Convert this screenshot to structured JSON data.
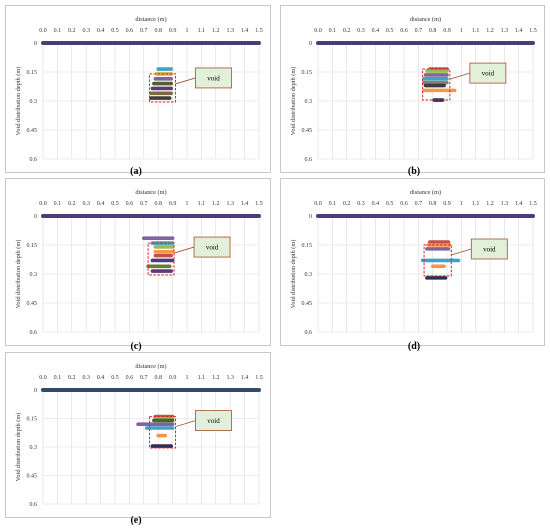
{
  "chart_data": [
    {
      "type": "line",
      "caption": "(a)",
      "xlabel": "distance (m)",
      "ylabel": "Void distribution depth (m)",
      "xlim": [
        0,
        1.5
      ],
      "ylim": [
        0,
        0.6
      ],
      "x_ticks": [
        "0.0",
        "0.1",
        "0.2",
        "0.3",
        "0.4",
        "0.5",
        "0.6",
        "0.7",
        "0.8",
        "0.9",
        "1",
        "1.1",
        "1.2",
        "1.3",
        "1.4",
        "1.5"
      ],
      "y_ticks": [
        "0",
        "0.15",
        "0.3",
        "0.45",
        "0.6"
      ],
      "annotation": "void",
      "surface": {
        "y": 0,
        "x": [
          0,
          1.5
        ],
        "color": "#4b3d7a"
      },
      "series": [
        {
          "color": "#3da2c3",
          "x": [
            0.8,
            0.89
          ],
          "y": 0.135
        },
        {
          "color": "#d0b24a",
          "x": [
            0.79,
            0.89
          ],
          "y": 0.16
        },
        {
          "color": "#8064a2",
          "x": [
            0.78,
            0.89
          ],
          "y": 0.185
        },
        {
          "color": "#4f6228",
          "x": [
            0.77,
            0.89
          ],
          "y": 0.21
        },
        {
          "color": "#5a3a7a",
          "x": [
            0.76,
            0.89
          ],
          "y": 0.235
        },
        {
          "color": "#7a6a3a",
          "x": [
            0.75,
            0.89
          ],
          "y": 0.26
        },
        {
          "color": "#3d3d3d",
          "x": [
            0.75,
            0.88
          ],
          "y": 0.285
        }
      ],
      "void_box": {
        "x": [
          0.74,
          0.92
        ],
        "y": [
          0.16,
          0.305
        ]
      }
    },
    {
      "type": "line",
      "caption": "(b)",
      "xlabel": "distance (m)",
      "ylabel": "Void distribution depth (m)",
      "xlim": [
        0,
        1.5
      ],
      "ylim": [
        0,
        0.6
      ],
      "x_ticks": [
        "0.0",
        "0.1",
        "0.2",
        "0.3",
        "0.4",
        "0.5",
        "0.6",
        "0.7",
        "0.8",
        "0.9",
        "1",
        "1.1",
        "1.2",
        "1.3",
        "1.4",
        "1.5"
      ],
      "y_ticks": [
        "0",
        "0.15",
        "0.3",
        "0.45",
        "0.6"
      ],
      "annotation": "void",
      "surface": {
        "y": 0,
        "x": [
          0,
          1.5
        ],
        "color": "#4b3d7a"
      },
      "series": [
        {
          "color": "#c0504d",
          "x": [
            0.78,
            0.9
          ],
          "y": 0.135
        },
        {
          "color": "#9bbb59",
          "x": [
            0.76,
            0.9
          ],
          "y": 0.145
        },
        {
          "color": "#8064a2",
          "x": [
            0.75,
            0.9
          ],
          "y": 0.165
        },
        {
          "color": "#3da2c3",
          "x": [
            0.74,
            0.9
          ],
          "y": 0.185
        },
        {
          "color": "#7f7f7f",
          "x": [
            0.74,
            0.9
          ],
          "y": 0.205
        },
        {
          "color": "#3d3d3d",
          "x": [
            0.75,
            0.88
          ],
          "y": 0.22
        },
        {
          "color": "#f79646",
          "x": [
            0.74,
            0.96
          ],
          "y": 0.245
        },
        {
          "color": "#2d2d55",
          "x": [
            0.81,
            0.87
          ],
          "y": 0.295
        }
      ],
      "void_box": {
        "x": [
          0.73,
          0.92
        ],
        "y": [
          0.135,
          0.295
        ]
      }
    },
    {
      "type": "line",
      "caption": "(c)",
      "xlabel": "distance (m)",
      "ylabel": "Void distribution depth (m)",
      "xlim": [
        0,
        1.5
      ],
      "ylim": [
        0,
        0.6
      ],
      "x_ticks": [
        "0.0",
        "0.1",
        "0.2",
        "0.3",
        "0.4",
        "0.5",
        "0.6",
        "0.7",
        "0.8",
        "0.9",
        "1",
        "1.1",
        "1.2",
        "1.3",
        "1.4",
        "1.5"
      ],
      "y_ticks": [
        "0",
        "0.15",
        "0.3",
        "0.45",
        "0.6"
      ],
      "annotation": "void",
      "surface": {
        "y": 0,
        "x": [
          0,
          1.5
        ],
        "color": "#4b3d7a"
      },
      "series": [
        {
          "color": "#8064a2",
          "x": [
            0.7,
            0.9
          ],
          "y": 0.115
        },
        {
          "color": "#3da2c3",
          "x": [
            0.76,
            0.9
          ],
          "y": 0.14
        },
        {
          "color": "#9bbb59",
          "x": [
            0.78,
            0.9
          ],
          "y": 0.16
        },
        {
          "color": "#f79646",
          "x": [
            0.78,
            0.9
          ],
          "y": 0.185
        },
        {
          "color": "#c0504d",
          "x": [
            0.78,
            0.89
          ],
          "y": 0.205
        },
        {
          "color": "#4b3d7a",
          "x": [
            0.76,
            0.9
          ],
          "y": 0.23
        },
        {
          "color": "#6a7a3a",
          "x": [
            0.73,
            0.88
          ],
          "y": 0.26
        },
        {
          "color": "#5a3a7a",
          "x": [
            0.76,
            0.89
          ],
          "y": 0.285
        }
      ],
      "void_box": {
        "x": [
          0.73,
          0.91
        ],
        "y": [
          0.14,
          0.305
        ]
      }
    },
    {
      "type": "line",
      "caption": "(d)",
      "xlabel": "distance (m)",
      "ylabel": "Void distribution depth (m)",
      "xlim": [
        0,
        1.5
      ],
      "ylim": [
        0,
        0.6
      ],
      "x_ticks": [
        "0.0",
        "0.1",
        "0.2",
        "0.3",
        "0.4",
        "0.5",
        "0.6",
        "0.7",
        "0.8",
        "0.9",
        "1",
        "1.1",
        "1.2",
        "1.3",
        "1.4",
        "1.5"
      ],
      "y_ticks": [
        "0",
        "0.15",
        "0.3",
        "0.45",
        "0.6"
      ],
      "annotation": "void",
      "surface": {
        "y": 0,
        "x": [
          0,
          1.5
        ],
        "color": "#4b3d7a"
      },
      "series": [
        {
          "color": "#c0504d",
          "x": [
            0.78,
            0.91
          ],
          "y": 0.135
        },
        {
          "color": "#f79646",
          "x": [
            0.77,
            0.92
          ],
          "y": 0.15
        },
        {
          "color": "#8064a2",
          "x": [
            0.76,
            0.91
          ],
          "y": 0.17
        },
        {
          "color": "#3da2c3",
          "x": [
            0.73,
            0.98
          ],
          "y": 0.23
        },
        {
          "color": "#f79646",
          "x": [
            0.8,
            0.88
          ],
          "y": 0.26
        },
        {
          "color": "#2d2d55",
          "x": [
            0.76,
            0.89
          ],
          "y": 0.32
        }
      ],
      "void_box": {
        "x": [
          0.74,
          0.93
        ],
        "y": [
          0.15,
          0.31
        ]
      }
    },
    {
      "type": "line",
      "caption": "(e)",
      "xlabel": "distance (m)",
      "ylabel": "Void distribution depth (m)",
      "xlim": [
        0,
        1.5
      ],
      "ylim": [
        0,
        0.6
      ],
      "x_ticks": [
        "0.0",
        "0.1",
        "0.2",
        "0.3",
        "0.4",
        "0.5",
        "0.6",
        "0.7",
        "0.8",
        "0.9",
        "1",
        "1.1",
        "1.2",
        "1.3",
        "1.4",
        "1.5"
      ],
      "y_ticks": [
        "0",
        "0.15",
        "0.3",
        "0.45",
        "0.6"
      ],
      "annotation": "void",
      "surface": {
        "y": 0,
        "x": [
          0,
          1.5
        ],
        "color": "#2f4a6a"
      },
      "series": [
        {
          "color": "#c0504d",
          "x": [
            0.78,
            0.9
          ],
          "y": 0.14
        },
        {
          "color": "#9bbb59",
          "x": [
            0.78,
            0.9
          ],
          "y": 0.15
        },
        {
          "color": "#4f6228",
          "x": [
            0.77,
            0.9
          ],
          "y": 0.16
        },
        {
          "color": "#8064a2",
          "x": [
            0.66,
            0.9
          ],
          "y": 0.18
        },
        {
          "color": "#3da2c3",
          "x": [
            0.72,
            0.9
          ],
          "y": 0.2
        },
        {
          "color": "#f79646",
          "x": [
            0.8,
            0.85
          ],
          "y": 0.24
        },
        {
          "color": "#2d2d55",
          "x": [
            0.76,
            0.89
          ],
          "y": 0.295
        }
      ],
      "void_box": {
        "x": [
          0.74,
          0.92
        ],
        "y": [
          0.14,
          0.305
        ]
      }
    }
  ]
}
